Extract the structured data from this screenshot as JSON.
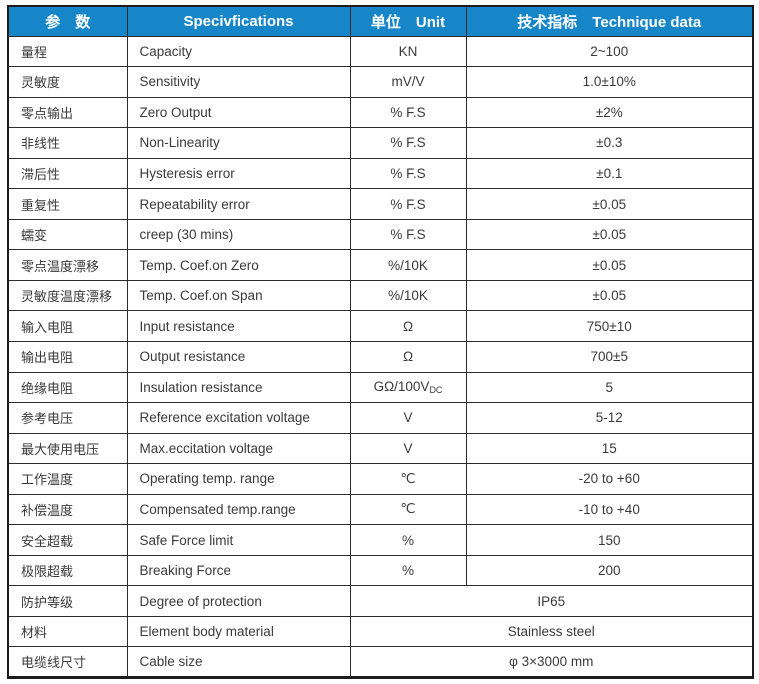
{
  "header": {
    "col_param": "参　数",
    "col_spec": "Specivfications",
    "col_unit": "单位　Unit",
    "col_data": "技术指标　Technique data"
  },
  "colors": {
    "header_bg": "#1786C9",
    "header_text": "#FFFFFF",
    "border": "#2B2B2B",
    "text": "#3A3A3A"
  },
  "rows": [
    {
      "param": "量程",
      "spec": "Capacity",
      "unit": "KN",
      "value": "2~100"
    },
    {
      "param": "灵敏度",
      "spec": "Sensitivity",
      "unit": "mV/V",
      "value": "1.0±10%"
    },
    {
      "param": "零点输出",
      "spec": "Zero Output",
      "unit": "% F.S",
      "value": "±2%"
    },
    {
      "param": "非线性",
      "spec": "Non-Linearity",
      "unit": "% F.S",
      "value": "±0.3"
    },
    {
      "param": "滞后性",
      "spec": "Hysteresis error",
      "unit": "% F.S",
      "value": "±0.1"
    },
    {
      "param": "重复性",
      "spec": "Repeatability error",
      "unit": "% F.S",
      "value": "±0.05"
    },
    {
      "param": "蠕变",
      "spec": "creep (30 mins)",
      "unit": "% F.S",
      "value": "±0.05"
    },
    {
      "param": "零点温度漂移",
      "spec": "Temp. Coef.on Zero",
      "unit": "%/10K",
      "value": "±0.05"
    },
    {
      "param": "灵敏度温度漂移",
      "spec": "Temp. Coef.on Span",
      "unit": "%/10K",
      "value": "±0.05"
    },
    {
      "param": "输入电阻",
      "spec": "Input resistance",
      "unit": "Ω",
      "value": "750±10"
    },
    {
      "param": "输出电阻",
      "spec": "Output resistance",
      "unit": "Ω",
      "value": "700±5"
    },
    {
      "param": "绝缘电阻",
      "spec": "Insulation resistance",
      "unit": "GΩ/100V",
      "unit_sub": "DC",
      "value": "5"
    },
    {
      "param": "参考电压",
      "spec": "Reference excitation voltage",
      "unit": "V",
      "value": "5-12"
    },
    {
      "param": "最大使用电压",
      "spec": "Max.eccitation voltage",
      "unit": "V",
      "value": "15"
    },
    {
      "param": "工作温度",
      "spec": "Operating temp. range",
      "unit": "℃",
      "value": "-20 to +60"
    },
    {
      "param": "补偿温度",
      "spec": "Compensated temp.range",
      "unit": "℃",
      "value": "-10 to +40"
    },
    {
      "param": "安全超载",
      "spec": "Safe Force limit",
      "unit": "%",
      "value": "150"
    },
    {
      "param": "极限超载",
      "spec": "Breaking Force",
      "unit": "%",
      "value": "200"
    },
    {
      "param": "防护等级",
      "spec": "Degree of protection",
      "merged": true,
      "value": "IP65"
    },
    {
      "param": "材料",
      "spec": "Element body material",
      "merged": true,
      "value": "Stainless steel"
    },
    {
      "param": "电缆线尺寸",
      "spec": "Cable size",
      "merged": true,
      "value": "φ 3×3000 mm"
    }
  ]
}
